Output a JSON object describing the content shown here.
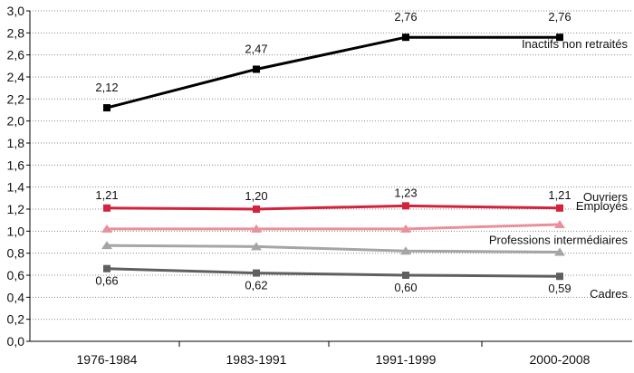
{
  "chart_data": {
    "type": "line",
    "categories": [
      "1976-1984",
      "1983-1991",
      "1991-1999",
      "2000-2008"
    ],
    "ylim": [
      0,
      3.0
    ],
    "yticks": [
      "0,0",
      "0,2",
      "0,4",
      "0,6",
      "0,8",
      "1,0",
      "1,2",
      "1,4",
      "1,6",
      "1,8",
      "2,0",
      "2,2",
      "2,4",
      "2,6",
      "2,8",
      "3,0"
    ],
    "grid": true,
    "series": [
      {
        "name": "Inactifs non retraités",
        "values": [
          2.12,
          2.47,
          2.76,
          2.76
        ],
        "labels": [
          "2,12",
          "2,47",
          "2,76",
          "2,76"
        ],
        "color": "#000000",
        "marker": "square"
      },
      {
        "name": "Ouvriers",
        "values": [
          1.21,
          1.2,
          1.23,
          1.21
        ],
        "labels": [
          "1,21",
          "1,20",
          "1,23",
          "1,21"
        ],
        "color": "#d2223c",
        "marker": "square"
      },
      {
        "name": "Employés",
        "values": [
          1.02,
          1.02,
          1.02,
          1.06
        ],
        "labels": [],
        "color": "#e8909c",
        "marker": "triangle"
      },
      {
        "name": "Professions intermédiaires",
        "values": [
          0.87,
          0.86,
          0.82,
          0.81
        ],
        "labels": [],
        "color": "#a5a5a5",
        "marker": "triangle"
      },
      {
        "name": "Cadres",
        "values": [
          0.66,
          0.62,
          0.6,
          0.59
        ],
        "labels": [
          "0,66",
          "0,62",
          "0,60",
          "0,59"
        ],
        "color": "#5f5f5f",
        "marker": "square"
      }
    ]
  }
}
